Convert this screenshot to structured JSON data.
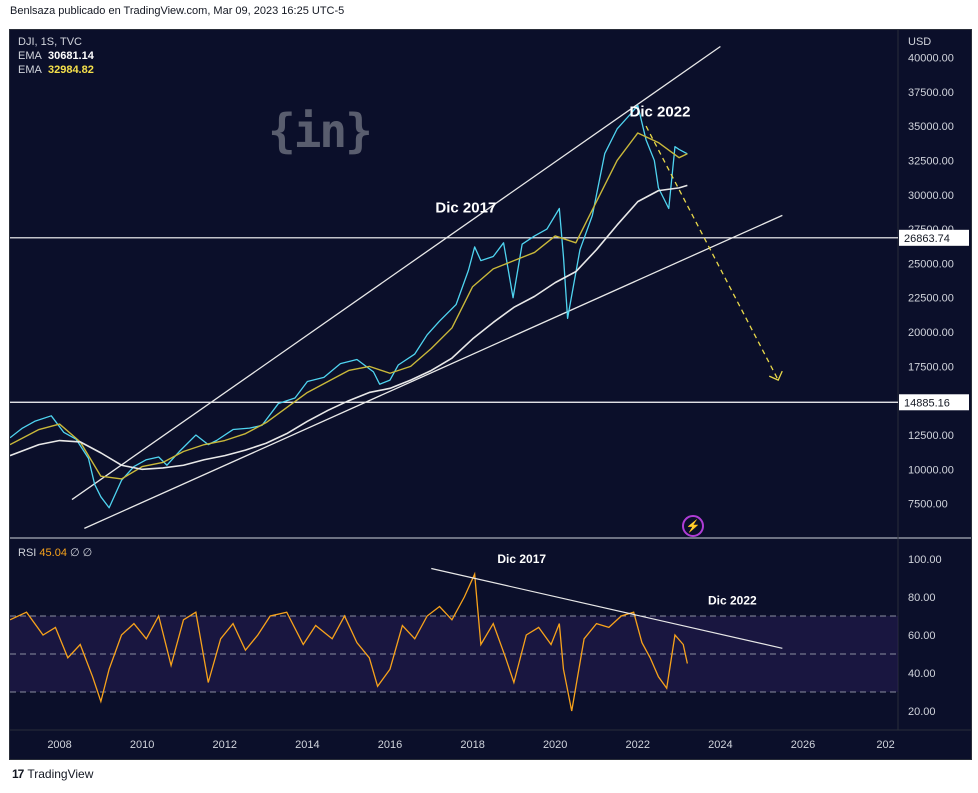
{
  "header": {
    "text": "Benlsaza publicado en TradingView.com, Mar 09, 2023 16:25 UTC-5"
  },
  "legend": {
    "symbol": "DJI, 1S, TVC",
    "ema1_label": "EMA",
    "ema1_value": "30681.14",
    "ema2_label": "EMA",
    "ema2_value": "32984.82"
  },
  "watermark": "{in}",
  "rsi_legend": {
    "label": "RSI",
    "value": "45.04",
    "extra": "∅ ∅"
  },
  "footer": {
    "brand": "TradingView",
    "logo": "17"
  },
  "colors": {
    "background": "#0b0f2a",
    "price": "#4fd4f0",
    "ema_fast": "#c9b83a",
    "ema_slow": "#e8e8e8",
    "rsi": "#f7a21b",
    "projection": "#e8d84a",
    "flash": "#b03dd6"
  },
  "icons": {
    "flash": "lightning-icon"
  },
  "chart_data": [
    {
      "type": "line",
      "title": "DJI, 1S, TVC",
      "currency_label": "USD",
      "xlim": [
        2006.8,
        2028.3
      ],
      "ylim": [
        5000,
        42000
      ],
      "y_ticks": [
        "40000.00",
        "37500.00",
        "35000.00",
        "32500.00",
        "30000.00",
        "27500.00",
        "25000.00",
        "22500.00",
        "20000.00",
        "17500.00",
        "15000.00",
        "12500.00",
        "10000.00",
        "7500.00"
      ],
      "x_ticks": [
        "2008",
        "2010",
        "2012",
        "2014",
        "2016",
        "2018",
        "2020",
        "2022",
        "2024",
        "2026",
        "202"
      ],
      "series": [
        {
          "name": "DJI",
          "x": [
            2006.8,
            2007.1,
            2007.4,
            2007.8,
            2008.1,
            2008.4,
            2008.7,
            2008.85,
            2009.0,
            2009.2,
            2009.5,
            2009.8,
            2010.1,
            2010.4,
            2010.6,
            2010.9,
            2011.3,
            2011.6,
            2011.8,
            2012.2,
            2012.6,
            2012.9,
            2013.3,
            2013.7,
            2014.0,
            2014.4,
            2014.8,
            2015.2,
            2015.6,
            2015.75,
            2016.0,
            2016.2,
            2016.6,
            2016.9,
            2017.2,
            2017.6,
            2017.9,
            2018.05,
            2018.2,
            2018.5,
            2018.75,
            2018.98,
            2019.2,
            2019.5,
            2019.8,
            2020.1,
            2020.2,
            2020.3,
            2020.6,
            2020.9,
            2021.2,
            2021.5,
            2021.8,
            2022.0,
            2022.2,
            2022.4,
            2022.5,
            2022.75,
            2022.9,
            2023.0,
            2023.2
          ],
          "y": [
            12300,
            13000,
            13500,
            13900,
            12700,
            12200,
            10800,
            8900,
            8000,
            7200,
            9200,
            10200,
            10700,
            10900,
            10300,
            11300,
            12500,
            11800,
            12100,
            12900,
            13000,
            13200,
            14800,
            15200,
            16400,
            16700,
            17700,
            18000,
            17100,
            16200,
            16500,
            17600,
            18400,
            19800,
            20800,
            22000,
            24500,
            26200,
            25200,
            25500,
            26500,
            22500,
            26400,
            27000,
            27500,
            29000,
            25500,
            21000,
            26000,
            28500,
            33000,
            34800,
            35800,
            36500,
            34000,
            32500,
            30500,
            29000,
            33500,
            33300,
            32984
          ]
        },
        {
          "name": "EMA",
          "x": [
            2006.8,
            2007.5,
            2008.0,
            2008.5,
            2009.0,
            2009.5,
            2010.0,
            2010.5,
            2011.0,
            2011.5,
            2012.0,
            2012.5,
            2013.0,
            2013.5,
            2014.0,
            2014.5,
            2015.0,
            2015.5,
            2016.0,
            2016.5,
            2017.0,
            2017.5,
            2018.0,
            2018.5,
            2019.0,
            2019.5,
            2020.0,
            2020.5,
            2021.0,
            2021.5,
            2022.0,
            2022.5,
            2023.0,
            2023.2
          ],
          "y": [
            11800,
            12900,
            13300,
            12000,
            9500,
            9300,
            10200,
            10500,
            11300,
            11800,
            12100,
            12600,
            13400,
            14500,
            15600,
            16400,
            17200,
            17500,
            17000,
            17500,
            18800,
            20300,
            23300,
            24600,
            25200,
            25800,
            27000,
            26500,
            29500,
            32500,
            34500,
            33800,
            32700,
            32984
          ]
        },
        {
          "name": "EMA",
          "x": [
            2006.8,
            2007.5,
            2008.0,
            2008.5,
            2009.0,
            2009.5,
            2010.0,
            2010.5,
            2011.0,
            2011.5,
            2012.0,
            2012.5,
            2013.0,
            2013.5,
            2014.0,
            2014.5,
            2015.0,
            2015.5,
            2016.0,
            2016.5,
            2017.0,
            2017.5,
            2018.0,
            2018.5,
            2019.0,
            2019.5,
            2020.0,
            2020.5,
            2021.0,
            2021.5,
            2022.0,
            2022.5,
            2023.0,
            2023.2
          ],
          "y": [
            11000,
            11800,
            12100,
            12000,
            11200,
            10300,
            10000,
            10100,
            10300,
            10700,
            11000,
            11400,
            11900,
            12600,
            13500,
            14300,
            15000,
            15600,
            15900,
            16500,
            17200,
            18100,
            19500,
            20700,
            21800,
            22600,
            23600,
            24400,
            26000,
            27800,
            29500,
            30300,
            30500,
            30681
          ]
        }
      ],
      "horizontal_levels": [
        {
          "value": 26863.74,
          "label": "26863.74"
        },
        {
          "value": 14885.16,
          "label": "14885.16"
        }
      ],
      "annotations": [
        {
          "text": "Dic 2017",
          "x": 2017.1,
          "y": 28700
        },
        {
          "text": "Dic 2022",
          "x": 2021.8,
          "y": 35700
        }
      ],
      "trendlines": [
        {
          "x1": 2008.3,
          "y1": 7800,
          "x2": 2024.0,
          "y2": 40800
        },
        {
          "x1": 2008.6,
          "y1": 5700,
          "x2": 2025.5,
          "y2": 28500
        }
      ],
      "projection": {
        "x1": 2022.2,
        "y1": 35000,
        "x2": 2025.4,
        "y2": 16500
      }
    },
    {
      "type": "line",
      "title": "RSI",
      "xlim": [
        2006.8,
        2028.3
      ],
      "ylim": [
        10,
        110
      ],
      "y_ticks": [
        "100.00",
        "80.00",
        "60.00",
        "40.00",
        "20.00"
      ],
      "guide_levels": [
        70,
        50,
        30
      ],
      "series": [
        {
          "name": "RSI",
          "x": [
            2006.8,
            2007.2,
            2007.6,
            2007.9,
            2008.2,
            2008.5,
            2008.8,
            2009.0,
            2009.2,
            2009.5,
            2009.8,
            2010.1,
            2010.4,
            2010.7,
            2011.0,
            2011.3,
            2011.6,
            2011.9,
            2012.2,
            2012.5,
            2012.8,
            2013.1,
            2013.5,
            2013.9,
            2014.2,
            2014.6,
            2014.9,
            2015.2,
            2015.5,
            2015.7,
            2016.0,
            2016.3,
            2016.6,
            2016.9,
            2017.2,
            2017.5,
            2017.8,
            2018.05,
            2018.2,
            2018.5,
            2018.8,
            2019.0,
            2019.3,
            2019.6,
            2019.9,
            2020.1,
            2020.2,
            2020.4,
            2020.7,
            2021.0,
            2021.3,
            2021.6,
            2021.9,
            2022.1,
            2022.3,
            2022.5,
            2022.7,
            2022.9,
            2023.1,
            2023.2
          ],
          "y": [
            68,
            72,
            60,
            64,
            48,
            55,
            38,
            25,
            42,
            60,
            66,
            58,
            70,
            44,
            68,
            72,
            35,
            58,
            66,
            52,
            60,
            70,
            72,
            55,
            65,
            58,
            70,
            56,
            48,
            33,
            42,
            65,
            58,
            70,
            75,
            68,
            80,
            92,
            55,
            66,
            48,
            35,
            60,
            64,
            55,
            66,
            42,
            20,
            58,
            66,
            64,
            70,
            72,
            56,
            48,
            38,
            32,
            60,
            55,
            45
          ]
        }
      ],
      "annotations": [
        {
          "text": "Dic 2017",
          "x": 2018.6,
          "y": 98
        },
        {
          "text": "Dic 2022",
          "x": 2023.7,
          "y": 76
        }
      ],
      "trendline": {
        "x1": 2017.0,
        "y1": 95,
        "x2": 2025.5,
        "y2": 53
      }
    }
  ]
}
